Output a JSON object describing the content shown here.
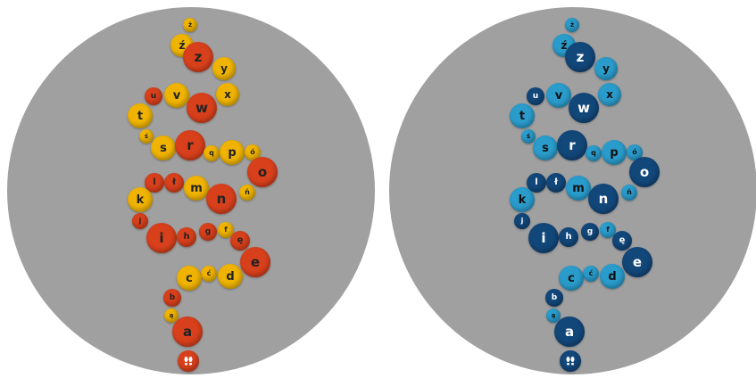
{
  "colors": {
    "board": "#a0a0a0",
    "left_light": "#f0b400",
    "left_dark": "#d8401c",
    "left_light_text": "#222222",
    "left_dark_text": "#222222",
    "right_light": "#2a9ccc",
    "right_dark": "#12477a",
    "right_light_text": "#111111",
    "right_dark_text": "#ffffff"
  },
  "start_icon": "footprints-icon",
  "letters": [
    "ż",
    "ź",
    "z",
    "y",
    "u",
    "v",
    "x",
    "w",
    "t",
    "ś",
    "s",
    "r",
    "q",
    "p",
    "ó",
    "o",
    "l",
    "ł",
    "m",
    "k",
    "n",
    "ń",
    "j",
    "i",
    "h",
    "g",
    "f",
    "ę",
    "e",
    "ć",
    "c",
    "d",
    "b",
    "ą",
    "a"
  ],
  "boards": [
    {
      "name": "orange-board"
    },
    {
      "name": "blue-board"
    }
  ]
}
